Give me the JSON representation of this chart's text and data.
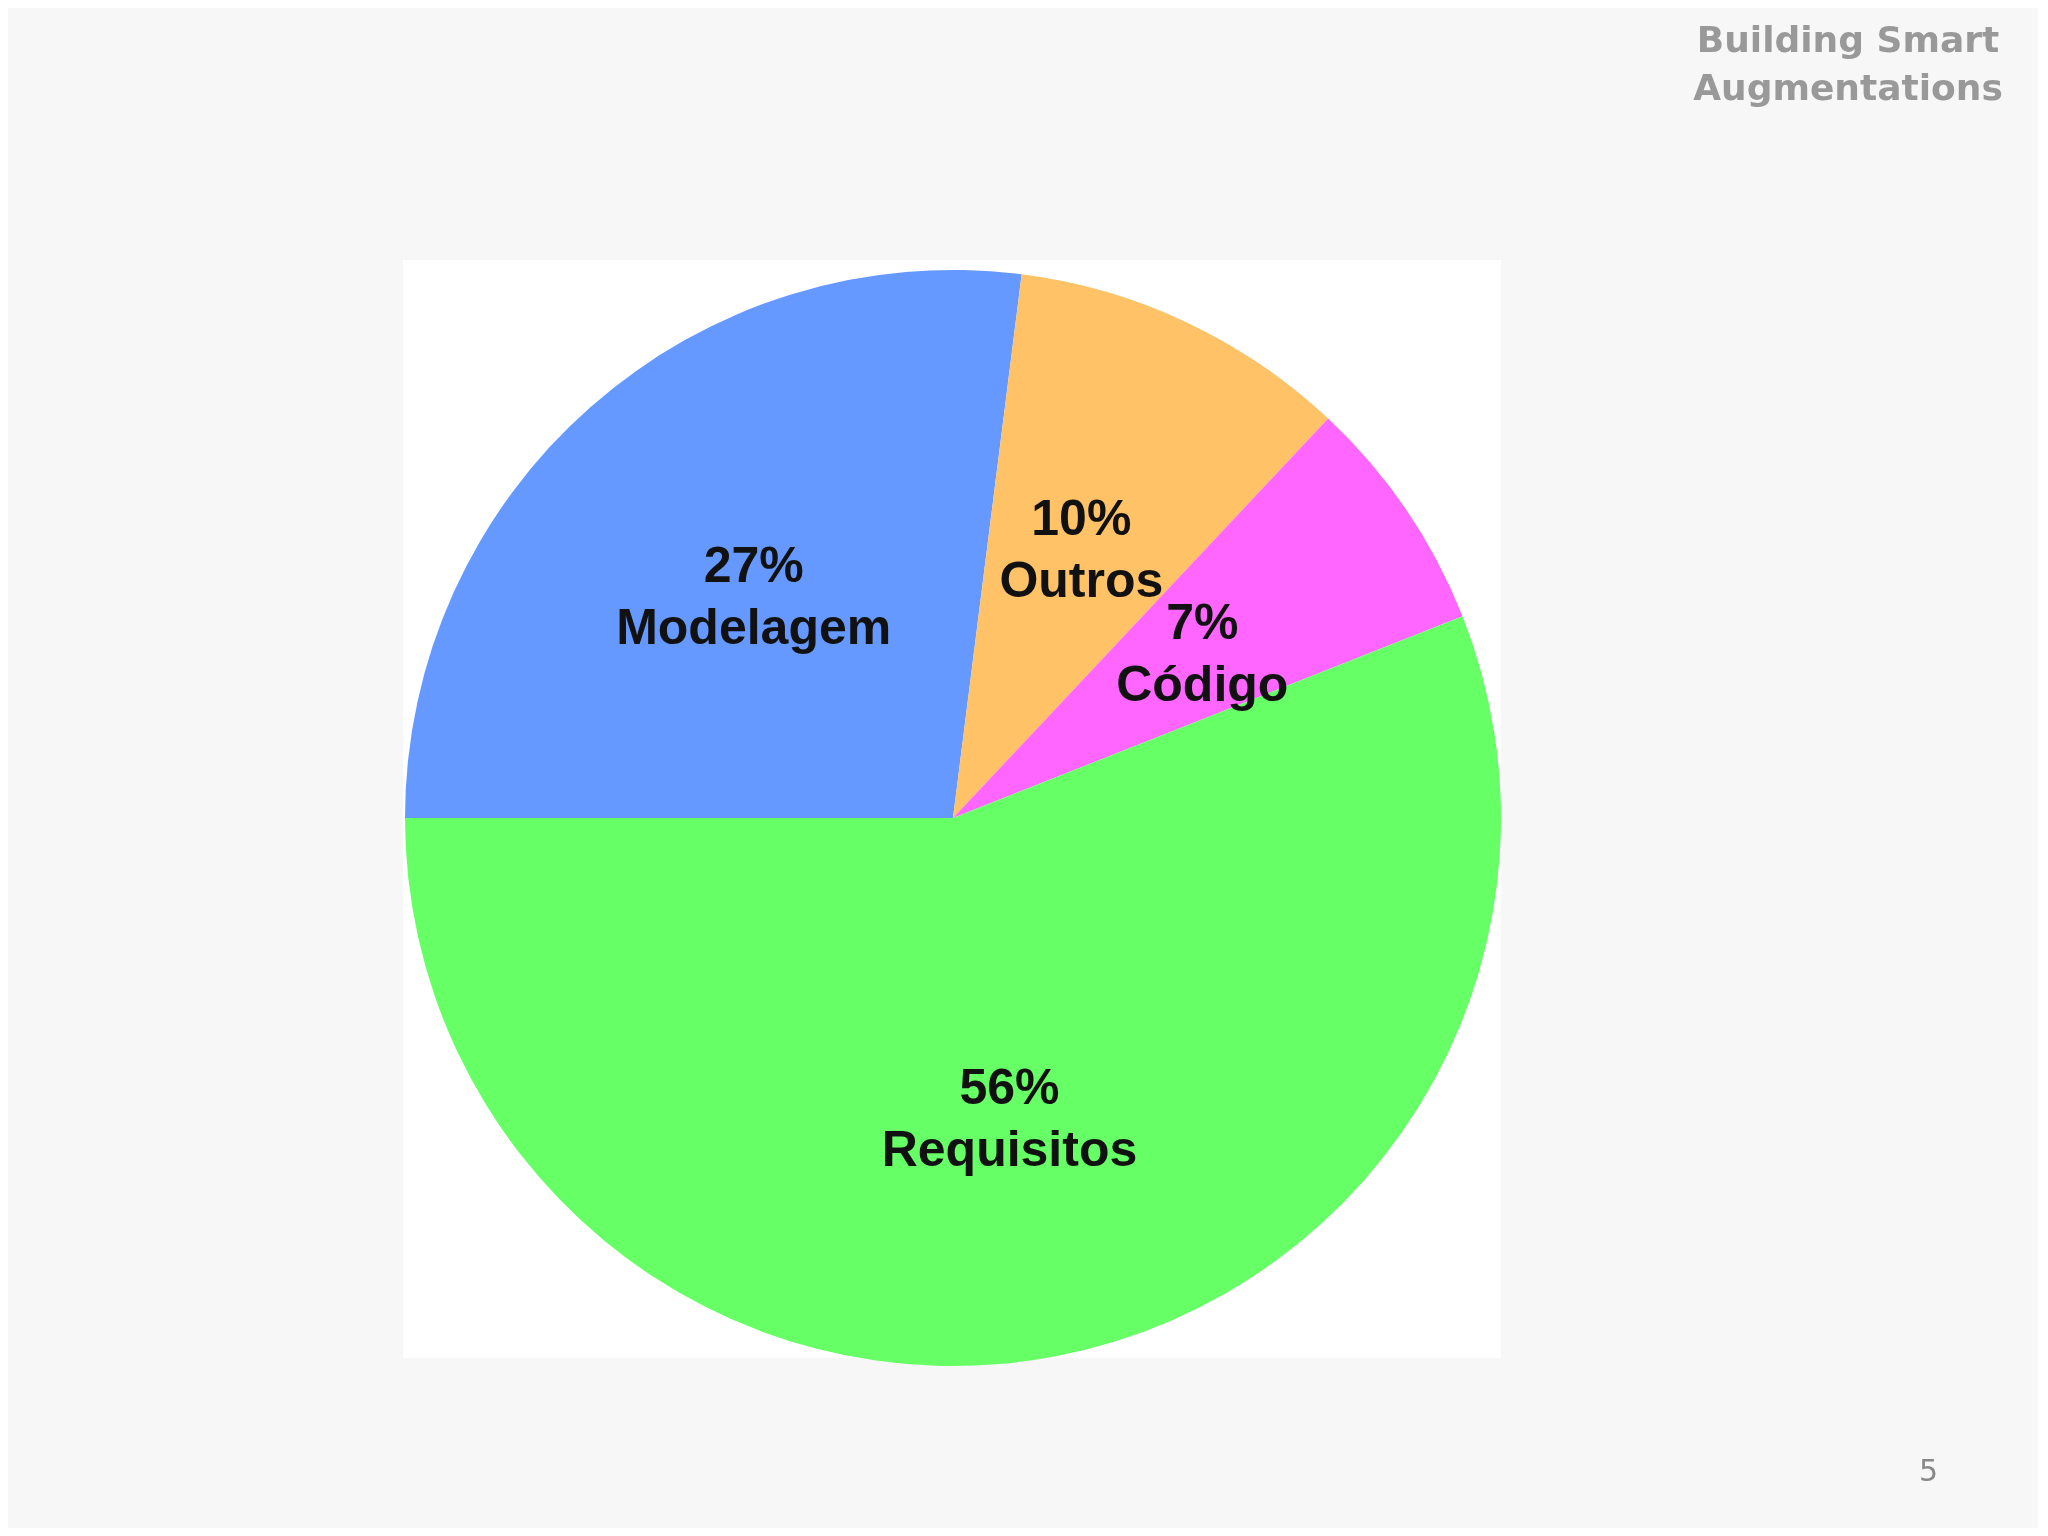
{
  "chart_data": {
    "type": "pie",
    "title": "Building Smart Augmentations",
    "categories": [
      "Modelagem",
      "Outros",
      "Código",
      "Requisitos"
    ],
    "values": [
      27,
      10,
      7,
      56
    ],
    "value_labels": [
      "27%",
      "10%",
      "7%",
      "56%"
    ],
    "colors": [
      "#6699ff",
      "#ffc266",
      "#ff66ff",
      "#66ff66"
    ],
    "legend": false,
    "annotations": [
      "5"
    ]
  }
}
